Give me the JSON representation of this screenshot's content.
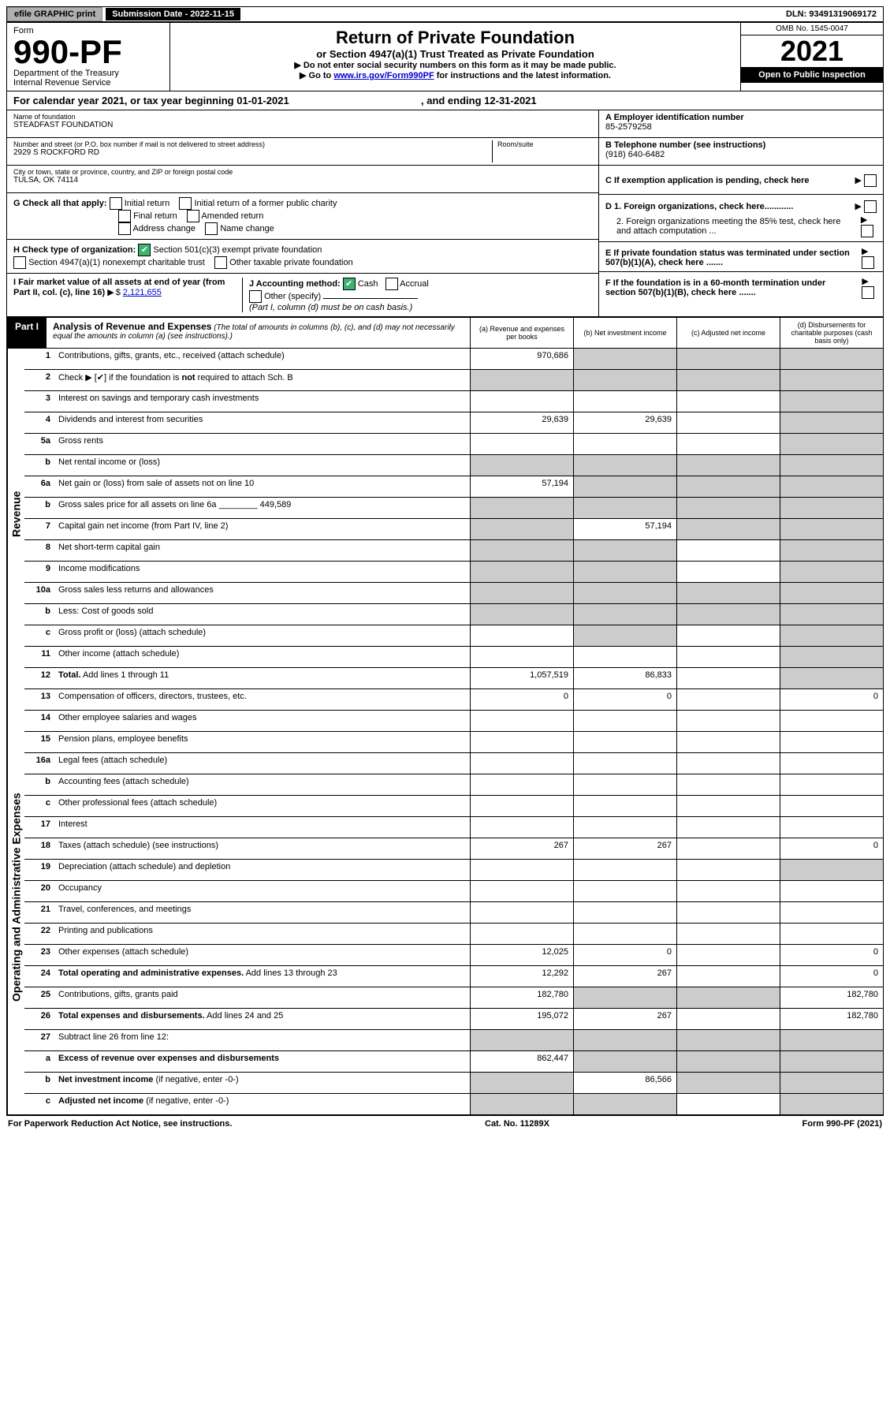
{
  "colors": {
    "black": "#000000",
    "white": "#ffffff",
    "link": "#0000cc",
    "green_check": "#3cb371",
    "grey_fill": "#cccccc",
    "btn_grey": "#b0b0b0"
  },
  "top_bar": {
    "efile": "efile GRAPHIC print",
    "submission": "Submission Date - 2022-11-15",
    "dln": "DLN: 93491319069172"
  },
  "header": {
    "form_word": "Form",
    "form_no": "990-PF",
    "dept": "Department of the Treasury",
    "irs": "Internal Revenue Service",
    "title": "Return of Private Foundation",
    "subtitle": "or Section 4947(a)(1) Trust Treated as Private Foundation",
    "note1": "▶ Do not enter social security numbers on this form as it may be made public.",
    "note2_pre": "▶ Go to ",
    "note2_link": "www.irs.gov/Form990PF",
    "note2_post": " for instructions and the latest information.",
    "omb": "OMB No. 1545-0047",
    "year": "2021",
    "open": "Open to Public Inspection"
  },
  "cal_year": {
    "pre": "For calendar year 2021, or tax year beginning 01-01-2021",
    "end": ", and ending 12-31-2021"
  },
  "info": {
    "name_label": "Name of foundation",
    "name": "STEADFAST FOUNDATION",
    "addr_label": "Number and street (or P.O. box number if mail is not delivered to street address)",
    "addr": "2929 S ROCKFORD RD",
    "room_label": "Room/suite",
    "city_label": "City or town, state or province, country, and ZIP or foreign postal code",
    "city": "TULSA, OK  74114",
    "a_label": "A Employer identification number",
    "a_val": "85-2579258",
    "b_label": "B Telephone number (see instructions)",
    "b_val": "(918) 640-6482",
    "c_label": "C If exemption application is pending, check here",
    "d1": "D 1. Foreign organizations, check here............",
    "d2": "2. Foreign organizations meeting the 85% test, check here and attach computation ...",
    "e_label": "E If private foundation status was terminated under section 507(b)(1)(A), check here .......",
    "f_label": "F If the foundation is in a 60-month termination under section 507(b)(1)(B), check here .......",
    "g_label": "G Check all that apply:",
    "g_opts": [
      "Initial return",
      "Initial return of a former public charity",
      "Final return",
      "Amended return",
      "Address change",
      "Name change"
    ],
    "h_label": "H Check type of organization:",
    "h1": "Section 501(c)(3) exempt private foundation",
    "h2": "Section 4947(a)(1) nonexempt charitable trust",
    "h3": "Other taxable private foundation",
    "i_label": "I Fair market value of all assets at end of year (from Part II, col. (c), line 16)",
    "i_val": "2,121,655",
    "j_label": "J Accounting method:",
    "j_cash": "Cash",
    "j_acc": "Accrual",
    "j_other": "Other (specify)",
    "j_note": "(Part I, column (d) must be on cash basis.)"
  },
  "part1": {
    "label": "Part I",
    "title": "Analysis of Revenue and Expenses",
    "title_note": "(The total of amounts in columns (b), (c), and (d) may not necessarily equal the amounts in column (a) (see instructions).)",
    "col_a": "(a)  Revenue and expenses per books",
    "col_b": "(b)  Net investment income",
    "col_c": "(c)  Adjusted net income",
    "col_d": "(d)  Disbursements for charitable purposes (cash basis only)"
  },
  "side_labels": {
    "revenue": "Revenue",
    "expenses": "Operating and Administrative Expenses"
  },
  "rows": [
    {
      "n": "1",
      "d": "",
      "a": "970,686",
      "b": "",
      "c": "",
      "class": {
        "b": "grey",
        "c": "grey",
        "d": "grey"
      }
    },
    {
      "n": "2",
      "d": "",
      "a": "",
      "b": "",
      "c": "",
      "class": {
        "a": "grey",
        "b": "grey",
        "c": "grey",
        "d": "grey"
      }
    },
    {
      "n": "3",
      "d": "",
      "a": "",
      "b": "",
      "c": "",
      "class": {
        "d": "grey"
      }
    },
    {
      "n": "4",
      "d": "",
      "a": "29,639",
      "b": "29,639",
      "c": "",
      "class": {
        "d": "grey"
      }
    },
    {
      "n": "5a",
      "d": "",
      "a": "",
      "b": "",
      "c": "",
      "class": {
        "d": "grey"
      }
    },
    {
      "n": "b",
      "d": "",
      "a": "",
      "b": "",
      "c": "",
      "class": {
        "a": "grey",
        "b": "grey",
        "c": "grey",
        "d": "grey"
      }
    },
    {
      "n": "6a",
      "d": "",
      "a": "57,194",
      "b": "",
      "c": "",
      "class": {
        "b": "grey",
        "c": "grey",
        "d": "grey"
      }
    },
    {
      "n": "b",
      "d": "",
      "a": "",
      "b": "",
      "c": "",
      "class": {
        "a": "grey",
        "b": "grey",
        "c": "grey",
        "d": "grey"
      }
    },
    {
      "n": "7",
      "d": "",
      "a": "",
      "b": "57,194",
      "c": "",
      "class": {
        "a": "grey",
        "c": "grey",
        "d": "grey"
      }
    },
    {
      "n": "8",
      "d": "",
      "a": "",
      "b": "",
      "c": "",
      "class": {
        "a": "grey",
        "b": "grey",
        "d": "grey"
      }
    },
    {
      "n": "9",
      "d": "",
      "a": "",
      "b": "",
      "c": "",
      "class": {
        "a": "grey",
        "b": "grey",
        "d": "grey"
      }
    },
    {
      "n": "10a",
      "d": "",
      "a": "",
      "b": "",
      "c": "",
      "class": {
        "a": "grey",
        "b": "grey",
        "c": "grey",
        "d": "grey"
      }
    },
    {
      "n": "b",
      "d": "",
      "a": "",
      "b": "",
      "c": "",
      "class": {
        "a": "grey",
        "b": "grey",
        "c": "grey",
        "d": "grey"
      }
    },
    {
      "n": "c",
      "d": "",
      "a": "",
      "b": "",
      "c": "",
      "class": {
        "b": "grey",
        "d": "grey"
      }
    },
    {
      "n": "11",
      "d": "",
      "a": "",
      "b": "",
      "c": "",
      "class": {
        "d": "grey"
      }
    },
    {
      "n": "12",
      "d": "",
      "a": "1,057,519",
      "b": "86,833",
      "c": "",
      "bold": true,
      "class": {
        "d": "grey"
      }
    },
    {
      "n": "13",
      "d": "0",
      "a": "0",
      "b": "0",
      "c": ""
    },
    {
      "n": "14",
      "d": "",
      "a": "",
      "b": "",
      "c": ""
    },
    {
      "n": "15",
      "d": "",
      "a": "",
      "b": "",
      "c": ""
    },
    {
      "n": "16a",
      "d": "",
      "a": "",
      "b": "",
      "c": ""
    },
    {
      "n": "b",
      "d": "",
      "a": "",
      "b": "",
      "c": ""
    },
    {
      "n": "c",
      "d": "",
      "a": "",
      "b": "",
      "c": ""
    },
    {
      "n": "17",
      "d": "",
      "a": "",
      "b": "",
      "c": ""
    },
    {
      "n": "18",
      "d": "0",
      "a": "267",
      "b": "267",
      "c": ""
    },
    {
      "n": "19",
      "d": "",
      "a": "",
      "b": "",
      "c": "",
      "class": {
        "d": "grey"
      }
    },
    {
      "n": "20",
      "d": "",
      "a": "",
      "b": "",
      "c": ""
    },
    {
      "n": "21",
      "d": "",
      "a": "",
      "b": "",
      "c": ""
    },
    {
      "n": "22",
      "d": "",
      "a": "",
      "b": "",
      "c": ""
    },
    {
      "n": "23",
      "d": "0",
      "a": "12,025",
      "b": "0",
      "c": ""
    },
    {
      "n": "24",
      "d": "0",
      "a": "12,292",
      "b": "267",
      "c": "",
      "bold": true
    },
    {
      "n": "25",
      "d": "182,780",
      "a": "182,780",
      "b": "",
      "c": "",
      "class": {
        "b": "grey",
        "c": "grey"
      }
    },
    {
      "n": "26",
      "d": "182,780",
      "a": "195,072",
      "b": "267",
      "c": "",
      "bold": true
    },
    {
      "n": "27",
      "d": "",
      "a": "",
      "b": "",
      "c": "",
      "class": {
        "a": "grey",
        "b": "grey",
        "c": "grey",
        "d": "grey"
      }
    },
    {
      "n": "a",
      "d": "",
      "a": "862,447",
      "b": "",
      "c": "",
      "bold": true,
      "class": {
        "b": "grey",
        "c": "grey",
        "d": "grey"
      }
    },
    {
      "n": "b",
      "d": "",
      "a": "",
      "b": "86,566",
      "c": "",
      "bold": true,
      "class": {
        "a": "grey",
        "c": "grey",
        "d": "grey"
      }
    },
    {
      "n": "c",
      "d": "",
      "a": "",
      "b": "",
      "c": "",
      "bold": true,
      "class": {
        "a": "grey",
        "b": "grey",
        "d": "grey"
      }
    }
  ],
  "footer": {
    "left": "For Paperwork Reduction Act Notice, see instructions.",
    "mid": "Cat. No. 11289X",
    "right": "Form 990-PF (2021)"
  }
}
